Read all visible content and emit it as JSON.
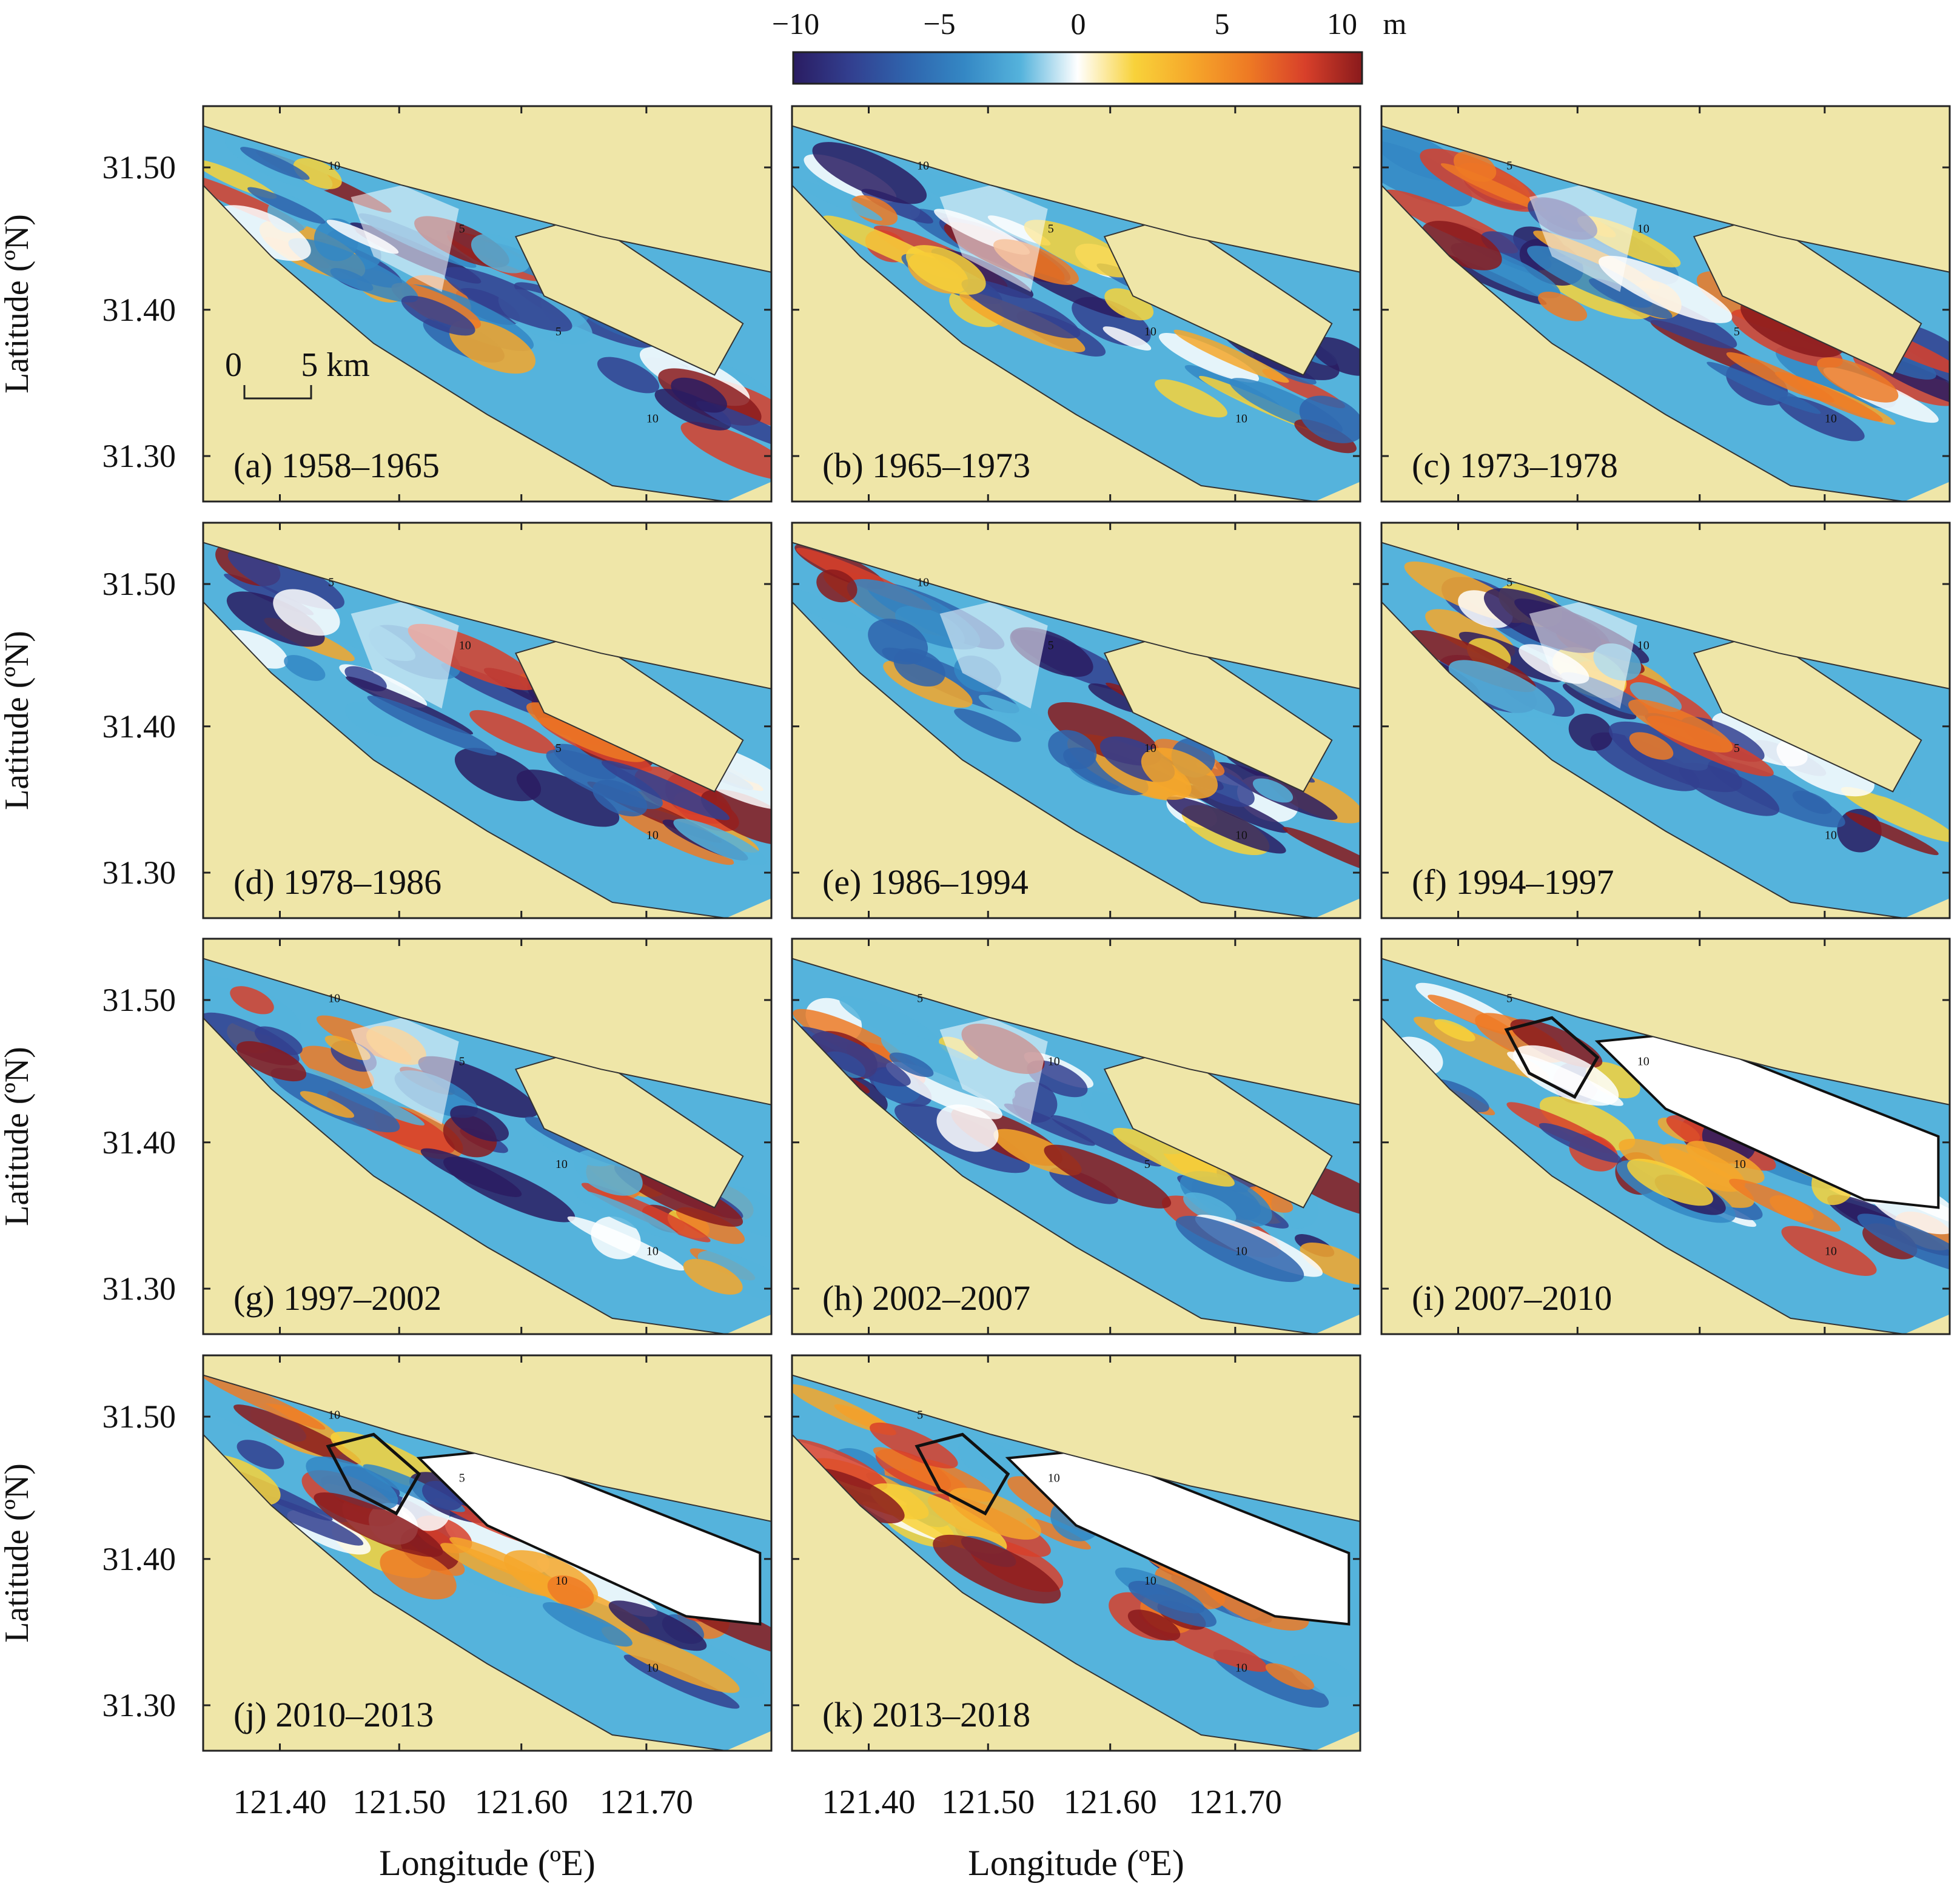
{
  "colorbar": {
    "tick_labels": [
      "−10",
      "−5",
      "0",
      "5",
      "10"
    ],
    "unit": "m",
    "colors": [
      "#2a1c62",
      "#323f8f",
      "#2f64ad",
      "#3487c4",
      "#55b3dc",
      "#ffffff",
      "#f8d23a",
      "#f6a72a",
      "#ee7a24",
      "#d8402a",
      "#8a1a1c"
    ]
  },
  "colors": {
    "land": "#efe6a8",
    "frame": "#222222",
    "gap": "#ffffff"
  },
  "axes": {
    "ylabel": "Latitude (ºN)",
    "xlabel": "Longitude (ºE)",
    "yticks": [
      "31.50",
      "31.40",
      "31.30"
    ],
    "xticks": [
      "121.40",
      "121.50",
      "121.60",
      "121.70"
    ]
  },
  "scalebar": {
    "left": "0",
    "right": "5 km"
  },
  "panels": [
    {
      "label": "(a) 1958–1965",
      "contours": [
        "10",
        "5",
        "5",
        "10"
      ],
      "reclaimed": false
    },
    {
      "label": "(b) 1965–1973",
      "contours": [
        "10",
        "5",
        "10",
        "10"
      ],
      "reclaimed": false
    },
    {
      "label": "(c) 1973–1978",
      "contours": [
        "5",
        "10",
        "5",
        "10"
      ],
      "reclaimed": false
    },
    {
      "label": "(d) 1978–1986",
      "contours": [
        "5",
        "10",
        "5",
        "10"
      ],
      "reclaimed": false
    },
    {
      "label": "(e) 1986–1994",
      "contours": [
        "10",
        "5",
        "10",
        "10"
      ],
      "reclaimed": false
    },
    {
      "label": "(f) 1994–1997",
      "contours": [
        "5",
        "10",
        "5",
        "10"
      ],
      "reclaimed": false
    },
    {
      "label": "(g) 1997–2002",
      "contours": [
        "10",
        "5",
        "10",
        "10"
      ],
      "reclaimed": false
    },
    {
      "label": "(h) 2002–2007",
      "contours": [
        "5",
        "10",
        "5",
        "10"
      ],
      "reclaimed": false
    },
    {
      "label": "(i) 2007–2010",
      "contours": [
        "5",
        "10",
        "10",
        "10"
      ],
      "reclaimed": true
    },
    {
      "label": "(j) 2010–2013",
      "contours": [
        "10",
        "5",
        "10",
        "10"
      ],
      "reclaimed": true
    },
    {
      "label": "(k) 2013–2018",
      "contours": [
        "5",
        "10",
        "10",
        "10"
      ],
      "reclaimed": true
    }
  ]
}
